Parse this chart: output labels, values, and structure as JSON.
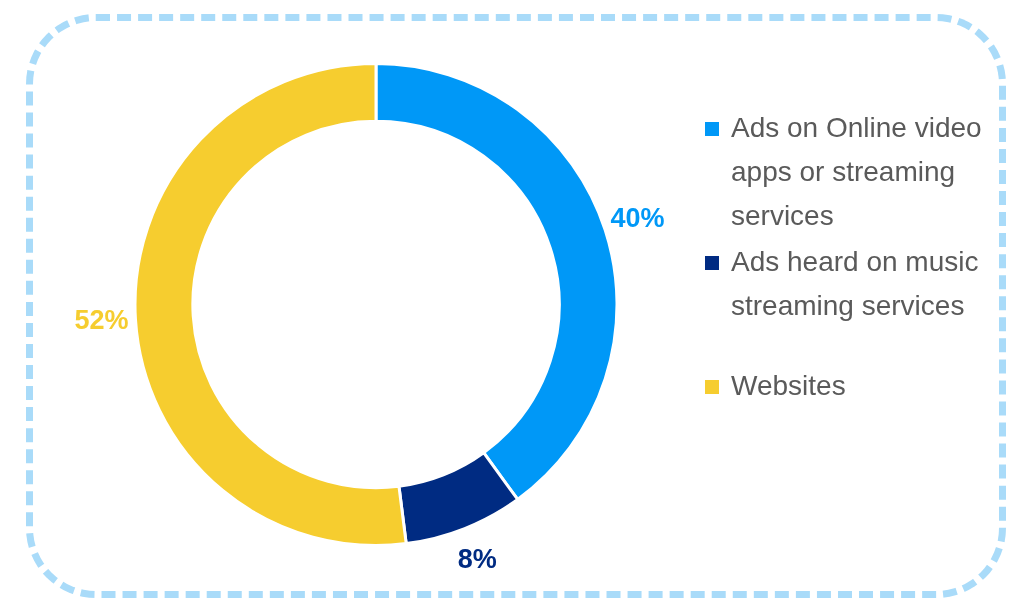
{
  "chart_data": {
    "type": "donut",
    "categories": [
      "Ads on Online video apps or streaming services",
      "Ads heard on music streaming services",
      "Websites"
    ],
    "values": [
      40,
      8,
      52
    ],
    "colors": [
      "#0098f7",
      "#002b82",
      "#f6cd2f"
    ],
    "value_labels": [
      "40%",
      "8%",
      "52%"
    ],
    "legend": "right"
  }
}
